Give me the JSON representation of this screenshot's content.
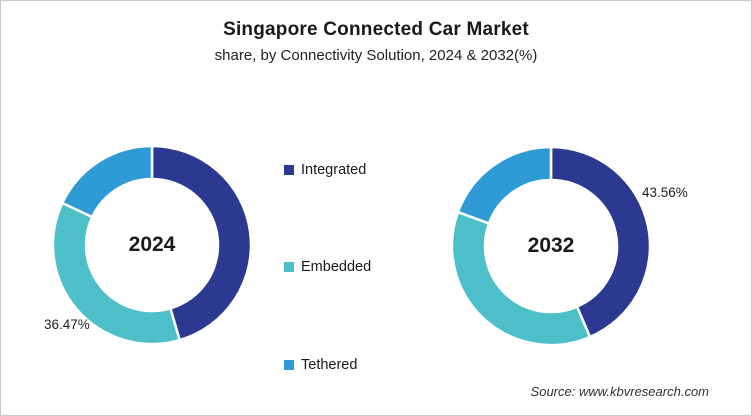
{
  "header": {
    "title": "Singapore Connected Car Market",
    "subtitle": "share, by Connectivity Solution, 2024 & 2032(%)"
  },
  "legend": {
    "items": [
      {
        "label": "Integrated",
        "color": "#2B3990"
      },
      {
        "label": "Embedded",
        "color": "#4DBFC9"
      },
      {
        "label": "Tethered",
        "color": "#2E9BD6"
      }
    ]
  },
  "source": "Source: www.kbvresearch.com",
  "colors": {
    "integrated": "#2B3990",
    "embedded": "#4DBFC9",
    "tethered": "#2E9BD6",
    "background": "#FFFFFF",
    "border": "#C9C9C9"
  },
  "chart_data": [
    {
      "type": "pie",
      "donut": true,
      "center_label": "2024",
      "labels": [
        "Integrated",
        "Embedded",
        "Tethered"
      ],
      "values": [
        45.5,
        36.47,
        18.03
      ],
      "colors": [
        "#2B3990",
        "#4DBFC9",
        "#2E9BD6"
      ],
      "start_angle_deg": 0,
      "direction": "clockwise",
      "callout": {
        "text": "36.47%",
        "segment": "Embedded",
        "position": "bottom-left"
      }
    },
    {
      "type": "pie",
      "donut": true,
      "center_label": "2032",
      "labels": [
        "Integrated",
        "Embedded",
        "Tethered"
      ],
      "values": [
        43.56,
        37.0,
        19.44
      ],
      "colors": [
        "#2B3990",
        "#4DBFC9",
        "#2E9BD6"
      ],
      "start_angle_deg": 0,
      "direction": "clockwise",
      "callout": {
        "text": "43.56%",
        "segment": "Integrated",
        "position": "top-right"
      }
    }
  ]
}
